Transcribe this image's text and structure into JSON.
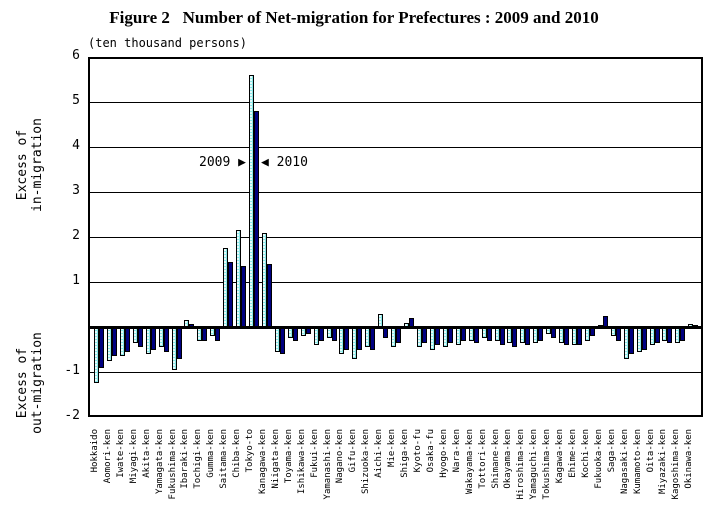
{
  "title": "Figure 2   Number of Net-migration for Prefectures : 2009 and 2010",
  "unit_label": "(ten thousand persons)",
  "y_axis": {
    "ticks": [
      6,
      5,
      4,
      3,
      2,
      1,
      -1,
      -2
    ],
    "upper_group": {
      "line1": "Excess of",
      "line2": "in-migration"
    },
    "lower_group": {
      "line1": "Excess of",
      "line2": "out-migration"
    }
  },
  "annotation": {
    "left_text": "2009",
    "left_arrow": "▶",
    "right_arrow": "◀",
    "right_text": "2010"
  },
  "colors": {
    "series_2009_fill": "#8ce9e9",
    "series_2009_pattern": "white-dots",
    "series_2010_fill": "#000080",
    "axis": "#000000",
    "background": "#ffffff"
  },
  "chart_data": {
    "type": "bar",
    "title": "Figure 2   Number of Net-migration for Prefectures : 2009 and 2010",
    "ylabel_upper": "Excess of in-migration",
    "ylabel_lower": "Excess of out-migration",
    "unit": "ten thousand persons",
    "ylim": [
      -2,
      6
    ],
    "grid": true,
    "legend_position": "inline-annotation-at-tokyo-bars",
    "categories": [
      "Hokkaido",
      "Aomori-ken",
      "Iwate-ken",
      "Miyagi-ken",
      "Akita-ken",
      "Yamagata-ken",
      "Fukushima-ken",
      "Ibaraki-ken",
      "Tochigi-ken",
      "Gumma-ken",
      "Saitama-ken",
      "Chiba-ken",
      "Tokyo-to",
      "Kanagawa-ken",
      "Niigata-ken",
      "Toyama-ken",
      "Ishikawa-ken",
      "Fukui-ken",
      "Yamanashi-ken",
      "Nagano-ken",
      "Gifu-ken",
      "Shizuoka-ken",
      "Aichi-ken",
      "Mie-ken",
      "Shiga-ken",
      "Kyoto-fu",
      "Osaka-fu",
      "Hyogo-ken",
      "Nara-ken",
      "Wakayama-ken",
      "Tottori-ken",
      "Shimane-ken",
      "Okayama-ken",
      "Hiroshima-ken",
      "Yamaguchi-ken",
      "Tokushima-ken",
      "Kagawa-ken",
      "Ehime-ken",
      "Kochi-ken",
      "Fukuoka-ken",
      "Saga-ken",
      "Nagasaki-ken",
      "Kumamoto-ken",
      "Oita-ken",
      "Miyazaki-ken",
      "Kagoshima-ken",
      "Okinawa-ken"
    ],
    "series": [
      {
        "name": "2009",
        "values": [
          -1.25,
          -0.75,
          -0.65,
          -0.35,
          -0.6,
          -0.45,
          -0.95,
          0.15,
          -0.3,
          -0.2,
          1.75,
          2.15,
          5.6,
          2.1,
          -0.55,
          -0.25,
          -0.2,
          -0.4,
          -0.25,
          -0.6,
          -0.7,
          -0.45,
          0.3,
          -0.45,
          0.1,
          -0.45,
          -0.5,
          -0.45,
          -0.4,
          -0.3,
          -0.25,
          -0.3,
          -0.35,
          -0.35,
          -0.35,
          -0.15,
          -0.35,
          -0.4,
          -0.3,
          0.05,
          -0.2,
          -0.7,
          -0.55,
          -0.4,
          -0.3,
          -0.35,
          0.07
        ]
      },
      {
        "name": "2010",
        "values": [
          -0.9,
          -0.65,
          -0.55,
          -0.45,
          -0.5,
          -0.55,
          -0.7,
          0.07,
          -0.3,
          -0.3,
          1.45,
          1.35,
          4.8,
          1.4,
          -0.6,
          -0.3,
          -0.15,
          -0.3,
          -0.3,
          -0.5,
          -0.5,
          -0.5,
          -0.25,
          -0.35,
          0.2,
          -0.35,
          -0.4,
          -0.35,
          -0.3,
          -0.35,
          -0.3,
          -0.4,
          -0.45,
          -0.4,
          -0.3,
          -0.25,
          -0.4,
          -0.4,
          -0.2,
          0.25,
          -0.3,
          -0.6,
          -0.5,
          -0.35,
          -0.35,
          -0.3,
          0.02
        ]
      }
    ]
  }
}
